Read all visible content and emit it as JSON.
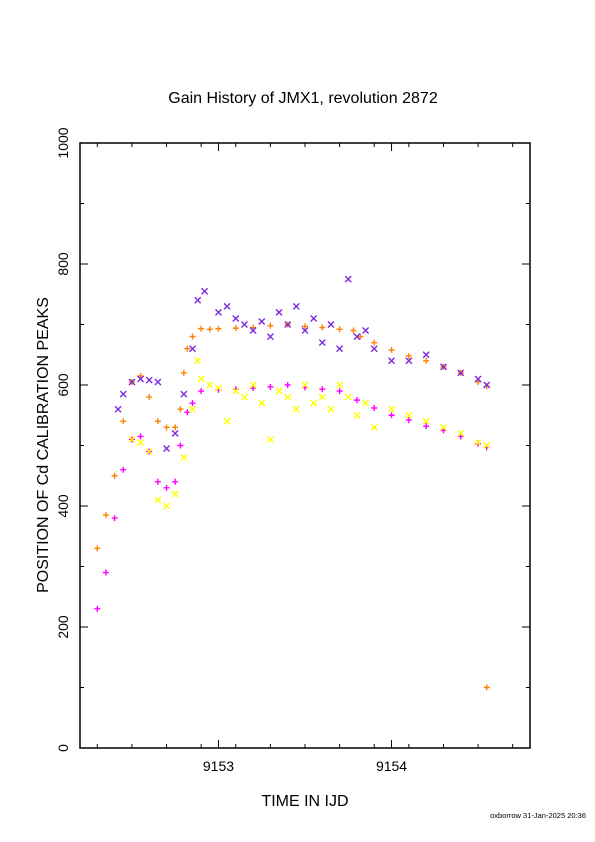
{
  "chart_data": {
    "type": "scatter",
    "title": "Gain History of JMX1, revolution 2872",
    "xlabel": "TIME IN IJD",
    "ylabel": "POSITION OF Cd CALIBRATION PEAKS",
    "xlim": [
      9152.2,
      9154.8
    ],
    "ylim": [
      0,
      1000
    ],
    "xticks": [
      9153,
      9154
    ],
    "yticks": [
      0,
      200,
      400,
      600,
      800,
      1000
    ],
    "grid": false,
    "legend": "none",
    "footer": "oxborrow 31-Jan-2025 20:36",
    "series": [
      {
        "color": "#ff8000",
        "marker": "plus",
        "x": [
          9152.3,
          9152.35,
          9152.4,
          9152.45,
          9152.5,
          9152.55,
          9152.6,
          9152.65,
          9152.7,
          9152.75,
          9152.78,
          9152.8,
          9152.82,
          9152.85,
          9152.9,
          9152.95,
          9153.0,
          9153.1,
          9153.2,
          9153.3,
          9153.4,
          9153.5,
          9153.6,
          9153.7,
          9153.78,
          9153.82,
          9153.9,
          9154.0,
          9154.1,
          9154.2,
          9154.3,
          9154.4,
          9154.5,
          9154.55,
          9154.55
        ],
        "y": [
          330,
          385,
          450,
          540,
          605,
          615,
          580,
          540,
          530,
          530,
          560,
          620,
          660,
          680,
          693,
          692,
          693,
          694,
          695,
          698,
          700,
          697,
          695,
          692,
          690,
          680,
          670,
          658,
          648,
          640,
          630,
          620,
          605,
          598,
          100
        ]
      },
      {
        "color": "#ff00ff",
        "marker": "plus",
        "x": [
          9152.3,
          9152.35,
          9152.4,
          9152.45,
          9152.5,
          9152.55,
          9152.6,
          9152.65,
          9152.7,
          9152.75,
          9152.78,
          9152.82,
          9152.85,
          9152.9,
          9153.0,
          9153.1,
          9153.2,
          9153.3,
          9153.4,
          9153.5,
          9153.6,
          9153.7,
          9153.8,
          9153.9,
          9154.0,
          9154.1,
          9154.2,
          9154.3,
          9154.4,
          9154.5,
          9154.55
        ],
        "y": [
          230,
          290,
          380,
          460,
          510,
          515,
          490,
          440,
          430,
          440,
          500,
          555,
          570,
          590,
          592,
          593,
          595,
          597,
          600,
          596,
          593,
          590,
          575,
          562,
          550,
          542,
          532,
          525,
          515,
          503,
          497
        ]
      },
      {
        "color": "#7b2be2",
        "marker": "cross",
        "x": [
          9152.42,
          9152.45,
          9152.5,
          9152.55,
          9152.6,
          9152.65,
          9152.7,
          9152.75,
          9152.8,
          9152.85,
          9152.88,
          9152.92,
          9153.0,
          9153.05,
          9153.1,
          9153.15,
          9153.2,
          9153.25,
          9153.3,
          9153.35,
          9153.4,
          9153.45,
          9153.5,
          9153.55,
          9153.6,
          9153.65,
          9153.7,
          9153.75,
          9153.8,
          9153.85,
          9153.9,
          9154.0,
          9154.1,
          9154.2,
          9154.3,
          9154.4,
          9154.5,
          9154.55
        ],
        "y": [
          560,
          585,
          605,
          610,
          608,
          605,
          495,
          520,
          585,
          660,
          740,
          755,
          720,
          730,
          710,
          700,
          690,
          705,
          680,
          720,
          700,
          730,
          690,
          710,
          670,
          700,
          660,
          775,
          680,
          690,
          660,
          640,
          640,
          650,
          630,
          620,
          610,
          600
        ]
      },
      {
        "color": "#ffff00",
        "marker": "cross",
        "x": [
          9152.5,
          9152.55,
          9152.6,
          9152.65,
          9152.7,
          9152.75,
          9152.8,
          9152.85,
          9152.88,
          9152.9,
          9152.95,
          9153.0,
          9153.05,
          9153.1,
          9153.15,
          9153.2,
          9153.25,
          9153.3,
          9153.35,
          9153.4,
          9153.45,
          9153.5,
          9153.55,
          9153.6,
          9153.65,
          9153.7,
          9153.75,
          9153.8,
          9153.85,
          9153.9,
          9154.0,
          9154.1,
          9154.2,
          9154.3,
          9154.4,
          9154.5,
          9154.55
        ],
        "y": [
          510,
          505,
          490,
          410,
          400,
          420,
          480,
          560,
          640,
          610,
          600,
          595,
          540,
          590,
          580,
          600,
          570,
          510,
          590,
          580,
          560,
          600,
          570,
          580,
          560,
          600,
          580,
          550,
          570,
          530,
          560,
          550,
          540,
          530,
          520,
          505,
          500
        ]
      }
    ]
  }
}
